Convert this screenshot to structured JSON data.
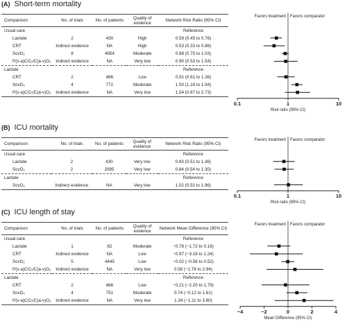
{
  "panels": [
    {
      "label": "(A)",
      "title": "Short-term mortality",
      "headers": [
        "Comparison",
        "No. of trials",
        "No. of patients",
        "Quality of evidence",
        "Network Risk Ratio (95% CI)"
      ],
      "groups": [
        {
          "name": "Usual care",
          "reference": "Reference",
          "rows": [
            {
              "c": "Lactate",
              "t": "2",
              "p": "430",
              "q": "High",
              "e": "0.59 (0.45 to 0.76)"
            },
            {
              "c": "CRT",
              "t": "Indirect evidence",
              "p": "NA",
              "q": "High",
              "e": "0.53 (0.33 to 0.86)"
            },
            {
              "c": "ScvO₂",
              "t": "8",
              "p": "4954",
              "q": "Moderate",
              "e": "0.88 (0.75 to 1.03)"
            },
            {
              "c": "P(v-a)CO₂/C(a-v)O₂",
              "t": "Indirect evidence",
              "p": "NA",
              "q": "Very low",
              "e": "0.90 (0.53 to 1.54)"
            }
          ]
        },
        {
          "name": "Lactate",
          "reference": "Reference",
          "rows": [
            {
              "c": "CRT",
              "t": "2",
              "p": "466",
              "q": "Low",
              "e": "0.91 (0.61 to 1.36)"
            },
            {
              "c": "ScvO₂",
              "t": "4",
              "p": "772",
              "q": "Moderate",
              "e": "1.50 (1.16 to 1.94)"
            },
            {
              "c": "P(v-a)CO₂/C(a-v)O₂",
              "t": "Indirect evidence",
              "p": "NA",
              "q": "Very low",
              "e": "1.54 (0.87 to 2.73)"
            }
          ]
        }
      ],
      "favors_left": "Favors treatment",
      "favors_right": "Favors comparator",
      "axis_label": "Risk ratio (95% CI)"
    },
    {
      "label": "(B)",
      "title": "ICU mortality",
      "headers": [
        "Comparison",
        "No. of trials",
        "No. of patients",
        "Quality of evidence",
        "Network Risk Ratio (95% CI)"
      ],
      "groups": [
        {
          "name": "Usual care",
          "reference": "Reference",
          "rows": [
            {
              "c": "Lactate",
              "t": "2",
              "p": "430",
              "q": "Very low",
              "e": "0.83 (0.51 to 1.36)"
            },
            {
              "c": "ScvO₂",
              "t": "2",
              "p": "2085",
              "q": "Very low",
              "e": "0.84 (0.54 to 1.30)"
            }
          ]
        },
        {
          "name": "Lactate",
          "reference": "Reference",
          "rows": [
            {
              "c": "ScvO₂",
              "t": "Indirect evidence",
              "p": "NA",
              "q": "Very low",
              "e": "1.02 (0.53 to 1.96)"
            }
          ]
        }
      ],
      "favors_left": "Favors treatment",
      "favors_right": "Favors comparator",
      "axis_label": "Risk ratio (95% CI)"
    },
    {
      "label": "(C)",
      "title": "ICU length of stay",
      "headers": [
        "Comparison",
        "No. of trials",
        "No. of patients",
        "Quality of evidence",
        "Network Mean Difference (95% CI)"
      ],
      "groups": [
        {
          "name": "Usual care",
          "reference": "Reference",
          "rows": [
            {
              "c": "Lactate",
              "t": "1",
              "p": "82",
              "q": "Moderate",
              "e": "−0.76 (−1.72 to 0.19)"
            },
            {
              "c": "CRT",
              "t": "Indirect evidence",
              "p": "NA",
              "q": "Low",
              "e": "−0.97 (−3.18 to 1.24)"
            },
            {
              "c": "ScvO₂",
              "t": "5",
              "p": "4445",
              "q": "Low",
              "e": "−0.02 (−0.56 to 0.52)"
            },
            {
              "c": "P(v-a)CO₂/C(a-v)O₂",
              "t": "Indirect evidence",
              "p": "NA",
              "q": "Very low",
              "e": "0.58 (−1.78 to 2.94)"
            }
          ]
        },
        {
          "name": "Lactate",
          "reference": "Reference",
          "rows": [
            {
              "c": "CRT",
              "t": "2",
              "p": "466",
              "q": "Low",
              "e": "−0.21 (−2.20 to 1.79)"
            },
            {
              "c": "ScvO₂",
              "t": "4",
              "p": "751",
              "q": "Moderate",
              "e": "0.74 (−0.12 to 1.61)"
            },
            {
              "c": "P(v-a)CO₂/C(a-v)O₂",
              "t": "Indirect evidence",
              "p": "NA",
              "q": "Very low",
              "e": "1.34 (−1.11 to 3.80)"
            }
          ]
        }
      ],
      "favors_left": "Favors treatment",
      "favors_right": "Favors comparator",
      "axis_label": "Mean Difference (95% CI)"
    }
  ],
  "chart_data": [
    {
      "type": "scatter",
      "title": "Short-term mortality",
      "xlabel": "Risk ratio (95% CI)",
      "scale": "log",
      "xlim": [
        0.1,
        10
      ],
      "ticks": [
        0.1,
        1,
        10
      ],
      "tick_labels": [
        "0.1",
        "1",
        "10"
      ],
      "reference_line": 1,
      "groups": [
        {
          "name": "Usual care",
          "points": [
            {
              "label": "Lactate",
              "est": 0.59,
              "lo": 0.45,
              "hi": 0.76
            },
            {
              "label": "CRT",
              "est": 0.53,
              "lo": 0.33,
              "hi": 0.86
            },
            {
              "label": "ScvO₂",
              "est": 0.88,
              "lo": 0.75,
              "hi": 1.03
            },
            {
              "label": "P(v-a)CO₂/C(a-v)O₂",
              "est": 0.9,
              "lo": 0.53,
              "hi": 1.54
            }
          ]
        },
        {
          "name": "Lactate",
          "points": [
            {
              "label": "CRT",
              "est": 0.91,
              "lo": 0.61,
              "hi": 1.36
            },
            {
              "label": "ScvO₂",
              "est": 1.5,
              "lo": 1.16,
              "hi": 1.94
            },
            {
              "label": "P(v-a)CO₂/C(a-v)O₂",
              "est": 1.54,
              "lo": 0.87,
              "hi": 2.73
            }
          ]
        }
      ]
    },
    {
      "type": "scatter",
      "title": "ICU mortality",
      "xlabel": "Risk ratio (95% CI)",
      "scale": "log",
      "xlim": [
        0.1,
        10
      ],
      "ticks": [
        0.1,
        1,
        10
      ],
      "tick_labels": [
        "0.1",
        "1",
        "10"
      ],
      "reference_line": 1,
      "groups": [
        {
          "name": "Usual care",
          "points": [
            {
              "label": "Lactate",
              "est": 0.83,
              "lo": 0.51,
              "hi": 1.36
            },
            {
              "label": "ScvO₂",
              "est": 0.84,
              "lo": 0.54,
              "hi": 1.3
            }
          ]
        },
        {
          "name": "Lactate",
          "points": [
            {
              "label": "ScvO₂",
              "est": 1.02,
              "lo": 0.53,
              "hi": 1.96
            }
          ]
        }
      ]
    },
    {
      "type": "scatter",
      "title": "ICU length of stay",
      "xlabel": "Mean Difference (95% CI)",
      "scale": "linear",
      "xlim": [
        -4,
        4
      ],
      "ticks": [
        -4,
        -2,
        0,
        2,
        4
      ],
      "tick_labels": [
        "−4",
        "−2",
        "0",
        "2",
        "4"
      ],
      "reference_line": 0,
      "groups": [
        {
          "name": "Usual care",
          "points": [
            {
              "label": "Lactate",
              "est": -0.76,
              "lo": -1.72,
              "hi": 0.19
            },
            {
              "label": "CRT",
              "est": -0.97,
              "lo": -3.18,
              "hi": 1.24
            },
            {
              "label": "ScvO₂",
              "est": -0.02,
              "lo": -0.56,
              "hi": 0.52
            },
            {
              "label": "P(v-a)CO₂/C(a-v)O₂",
              "est": 0.58,
              "lo": -1.78,
              "hi": 2.94
            }
          ]
        },
        {
          "name": "Lactate",
          "points": [
            {
              "label": "CRT",
              "est": -0.21,
              "lo": -2.2,
              "hi": 1.79
            },
            {
              "label": "ScvO₂",
              "est": 0.74,
              "lo": -0.12,
              "hi": 1.61
            },
            {
              "label": "P(v-a)CO₂/C(a-v)O₂",
              "est": 1.34,
              "lo": -1.11,
              "hi": 3.8
            }
          ]
        }
      ]
    }
  ]
}
